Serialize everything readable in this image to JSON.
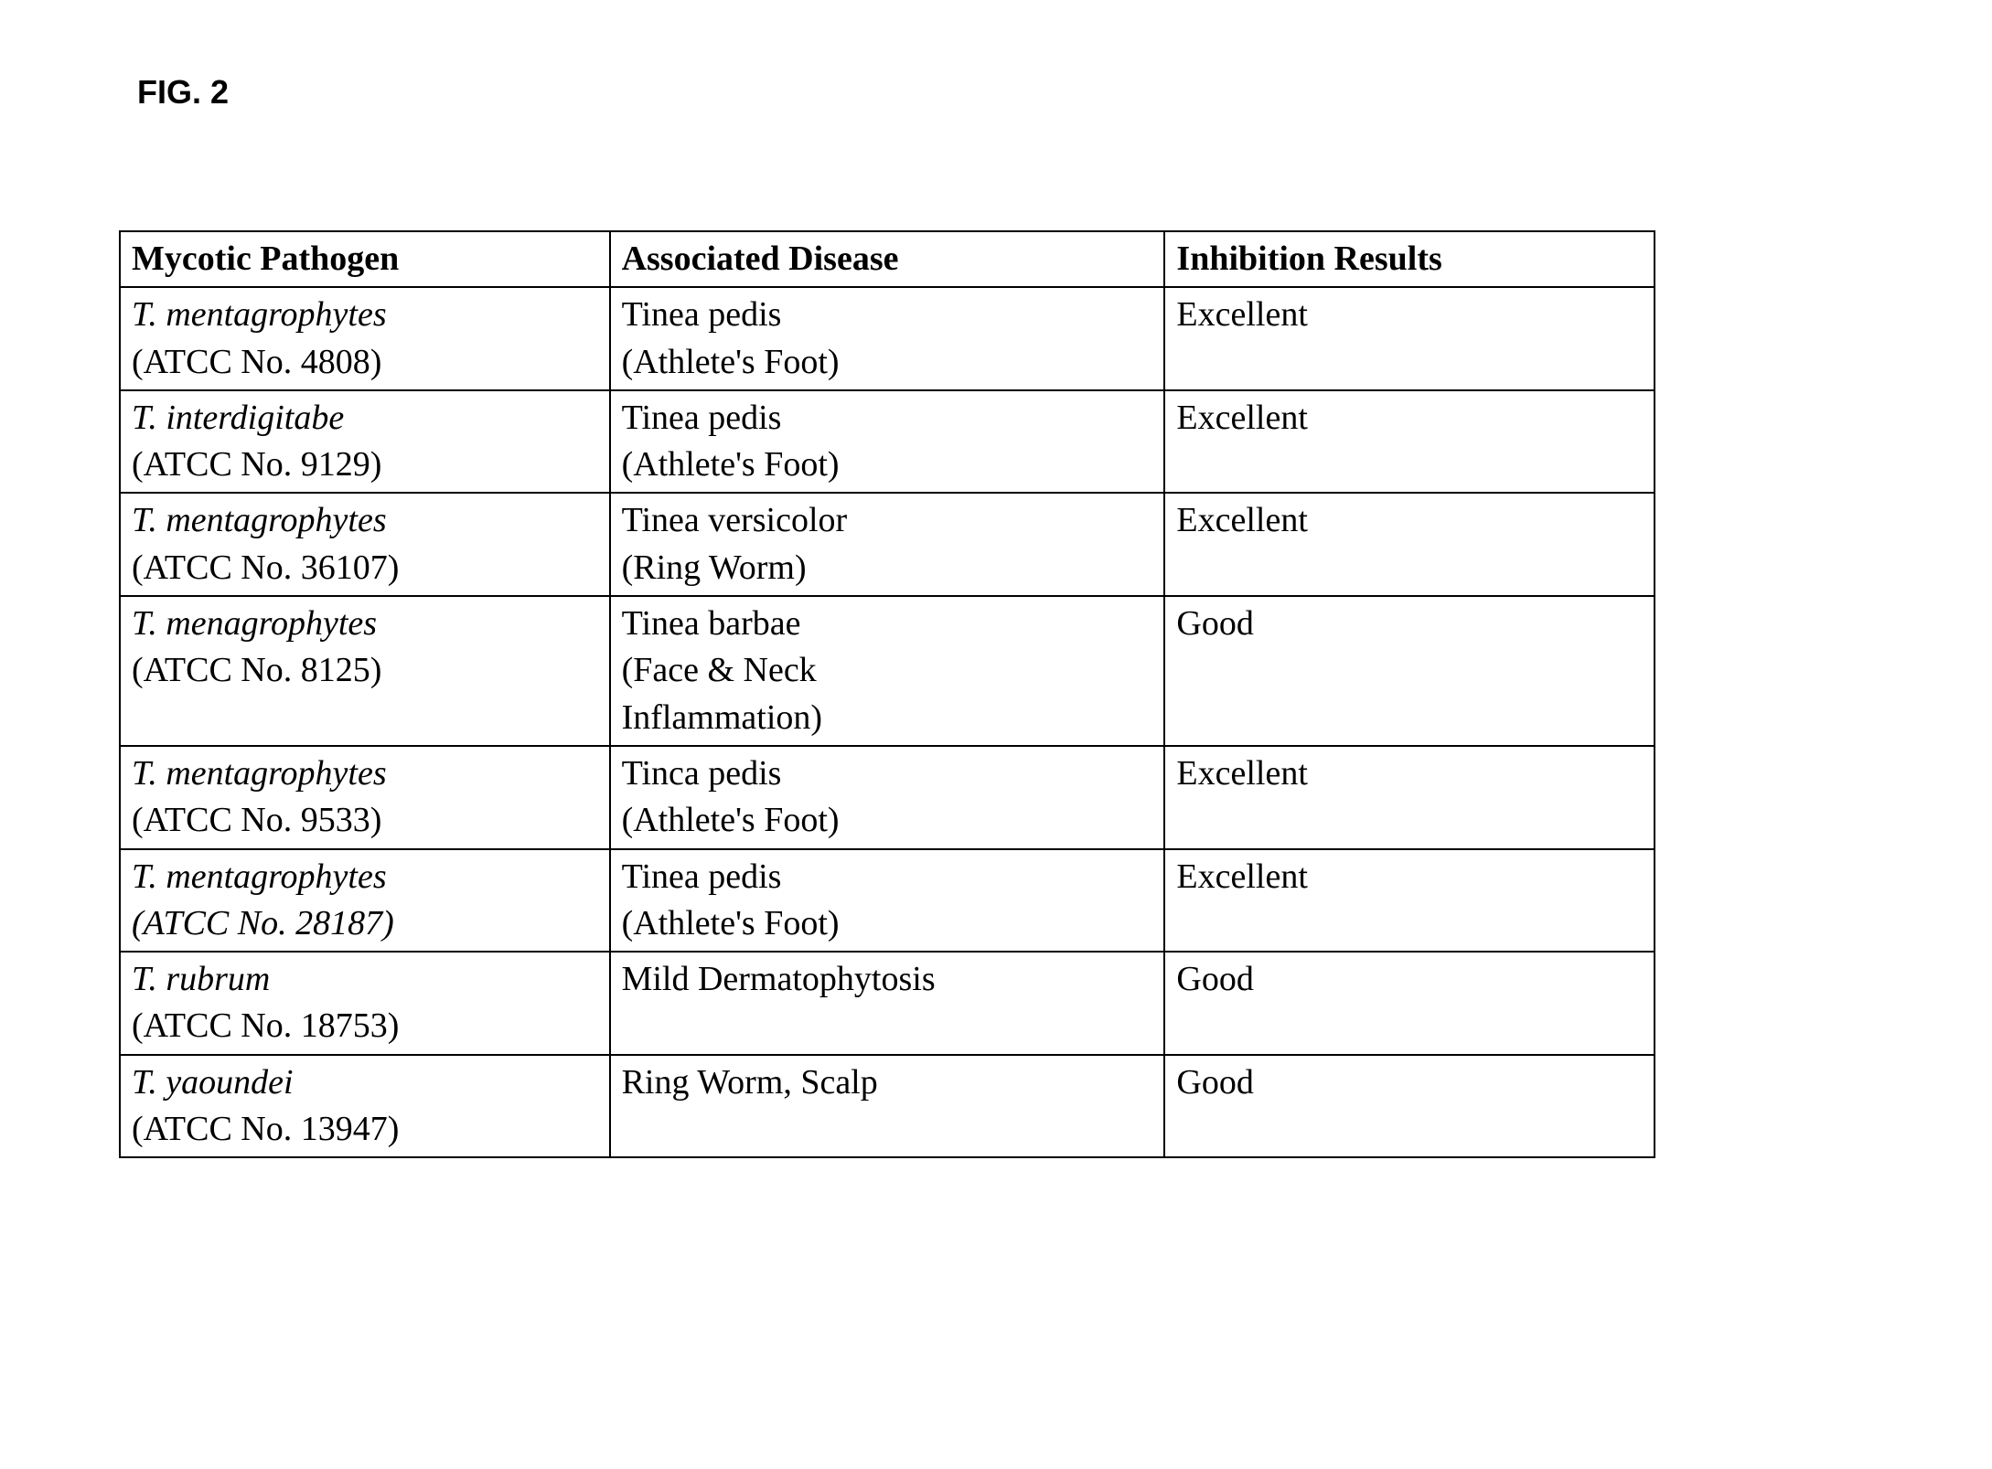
{
  "figure_label": "FIG. 2",
  "columns": {
    "c1": "Mycotic Pathogen",
    "c2": "Associated Disease",
    "c3": "Inhibition Results"
  },
  "rows": [
    {
      "pathogen_name": "T. mentagrophytes",
      "pathogen_atcc": "(ATCC No. 4808)",
      "atcc_italic": false,
      "disease_l1": "Tinea pedis",
      "disease_l2": "(Athlete's Foot)",
      "disease_l3": "",
      "result": "Excellent"
    },
    {
      "pathogen_name": "T.  interdigitabe",
      "pathogen_atcc": "(ATCC No. 9129)",
      "atcc_italic": false,
      "disease_l1": "Tinea pedis",
      "disease_l2": "(Athlete's Foot)",
      "disease_l3": "",
      "result": "Excellent"
    },
    {
      "pathogen_name": "T. mentagrophytes",
      "pathogen_atcc": "(ATCC No. 36107)",
      "atcc_italic": false,
      "disease_l1": "Tinea versicolor",
      "disease_l2": "(Ring Worm)",
      "disease_l3": "",
      "result": "Excellent"
    },
    {
      "pathogen_name": "T. menagrophytes",
      "pathogen_atcc": "(ATCC No. 8125)",
      "atcc_italic": false,
      "disease_l1": "Tinea barbae",
      "disease_l2": "(Face & Neck",
      "disease_l3": "Inflammation)",
      "result": "Good"
    },
    {
      "pathogen_name": "T. mentagrophytes",
      "pathogen_atcc": "(ATCC No. 9533)",
      "atcc_italic": false,
      "disease_l1": "Tinca pedis",
      "disease_l2": "(Athlete's Foot)",
      "disease_l3": "",
      "result": "Excellent"
    },
    {
      "pathogen_name": "T. mentagrophytes",
      "pathogen_atcc": "(ATCC No. 28187)",
      "atcc_italic": true,
      "disease_l1": "Tinea pedis",
      "disease_l2": "(Athlete's Foot)",
      "disease_l3": "",
      "result": "Excellent"
    },
    {
      "pathogen_name": "T. rubrum",
      "pathogen_atcc": "(ATCC No. 18753)",
      "atcc_italic": false,
      "disease_l1": "Mild Dermatophytosis",
      "disease_l2": "",
      "disease_l3": "",
      "result": "Good"
    },
    {
      "pathogen_name": "T. yaoundei",
      "pathogen_atcc": "(ATCC No. 13947)",
      "atcc_italic": false,
      "disease_l1": "Ring Worm, Scalp",
      "disease_l2": "",
      "disease_l3": "",
      "result": "Good"
    }
  ]
}
